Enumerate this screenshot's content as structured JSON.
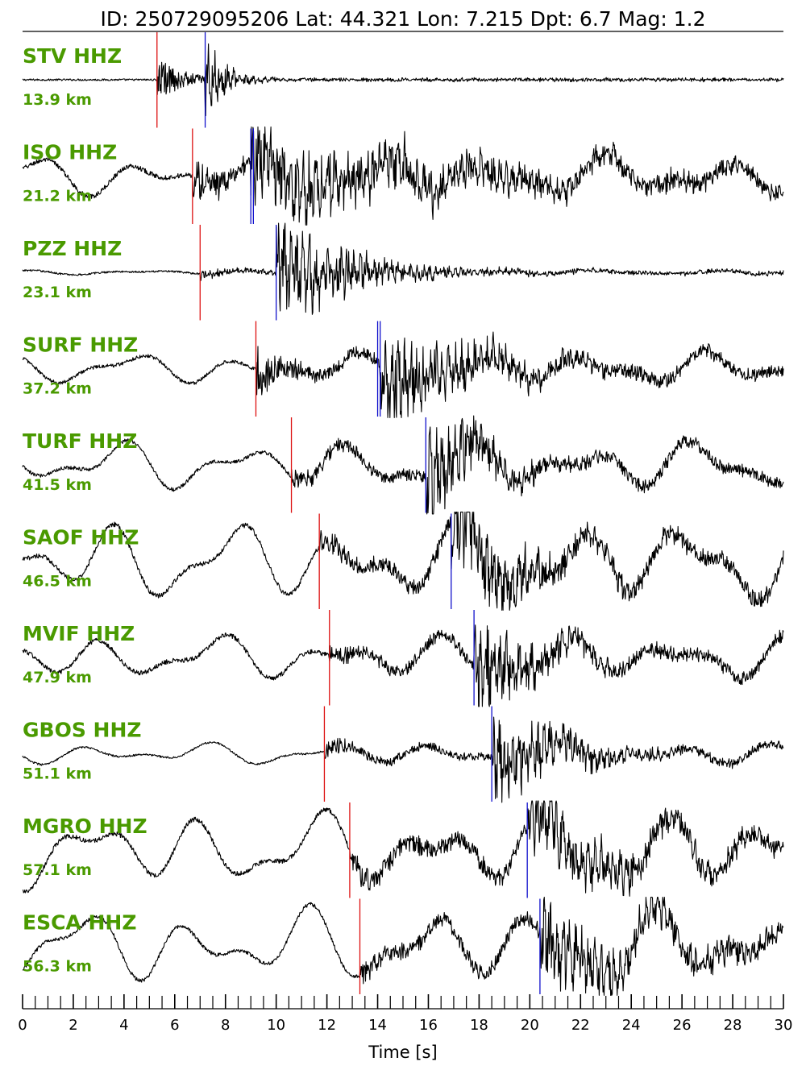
{
  "header": {
    "title": "ID: 250729095206 Lat:  44.321 Lon:   7.215 Dpt:     6.7 Mag:   1.2"
  },
  "colors": {
    "station_label": "#4a9a00",
    "p_pick": "#dd1111",
    "s_pick": "#1111cc",
    "trace": "#000000"
  },
  "chart_data": {
    "type": "line",
    "xlabel": "Time [s]",
    "xlim": [
      0,
      30
    ],
    "major_ticks": [
      0,
      2,
      4,
      6,
      8,
      10,
      12,
      14,
      16,
      18,
      20,
      22,
      24,
      26,
      28,
      30
    ],
    "minor_tick_step": 0.5,
    "stations": [
      {
        "name": "STV HHZ",
        "distance": "13.9 km",
        "p_time": 5.3,
        "s_time": 7.2,
        "p_extra": [],
        "s_extra": [],
        "pre_noise": 0.02,
        "p_amp": 0.45,
        "s_amp": 0.6,
        "decay": 1.2,
        "lowfreq": 0.0,
        "coda": 0.03
      },
      {
        "name": "ISO HHZ",
        "distance": "21.2 km",
        "p_time": 6.7,
        "s_time": 9.0,
        "p_extra": [],
        "s_extra": [
          9.1
        ],
        "pre_noise": 0.05,
        "p_amp": 0.55,
        "s_amp": 0.75,
        "decay": 0.12,
        "lowfreq": 0.45,
        "coda": 0.15
      },
      {
        "name": "PZZ HHZ",
        "distance": "23.1 km",
        "p_time": 7.0,
        "s_time": 10.0,
        "p_extra": [],
        "s_extra": [],
        "pre_noise": 0.02,
        "p_amp": 0.12,
        "s_amp": 0.95,
        "decay": 0.35,
        "lowfreq": 0.05,
        "coda": 0.04
      },
      {
        "name": "SURF HHZ",
        "distance": "37.2 km",
        "p_time": 9.2,
        "s_time": 14.1,
        "p_extra": [],
        "s_extra": [
          14.0
        ],
        "pre_noise": 0.04,
        "p_amp": 0.65,
        "s_amp": 0.85,
        "decay": 0.25,
        "lowfreq": 0.35,
        "coda": 0.12
      },
      {
        "name": "TURF HHZ",
        "distance": "41.5 km",
        "p_time": 10.6,
        "s_time": 15.9,
        "p_extra": [],
        "s_extra": [],
        "pre_noise": 0.04,
        "p_amp": 0.25,
        "s_amp": 0.9,
        "decay": 0.4,
        "lowfreq": 0.55,
        "coda": 0.12
      },
      {
        "name": "SAOF HHZ",
        "distance": "46.5 km",
        "p_time": 11.7,
        "s_time": 16.9,
        "p_extra": [],
        "s_extra": [],
        "pre_noise": 0.05,
        "p_amp": 0.2,
        "s_amp": 0.9,
        "decay": 0.3,
        "lowfreq": 0.9,
        "coda": 0.15
      },
      {
        "name": "MVIF HHZ",
        "distance": "47.9 km",
        "p_time": 12.1,
        "s_time": 17.8,
        "p_extra": [],
        "s_extra": [],
        "pre_noise": 0.05,
        "p_amp": 0.15,
        "s_amp": 0.9,
        "decay": 0.4,
        "lowfreq": 0.5,
        "coda": 0.12
      },
      {
        "name": "GBOS HHZ",
        "distance": "51.1 km",
        "p_time": 11.9,
        "s_time": 18.5,
        "p_extra": [],
        "s_extra": [],
        "pre_noise": 0.02,
        "p_amp": 0.2,
        "s_amp": 0.75,
        "decay": 0.35,
        "lowfreq": 0.25,
        "coda": 0.08
      },
      {
        "name": "MGRO HHZ",
        "distance": "57.1 km",
        "p_time": 12.9,
        "s_time": 19.9,
        "p_extra": [],
        "s_extra": [],
        "pre_noise": 0.05,
        "p_amp": 0.25,
        "s_amp": 0.6,
        "decay": 0.2,
        "lowfreq": 0.85,
        "coda": 0.18
      },
      {
        "name": "ESCA HHZ",
        "distance": "56.3 km",
        "p_time": 13.3,
        "s_time": 20.4,
        "p_extra": [],
        "s_extra": [],
        "pre_noise": 0.04,
        "p_amp": 0.25,
        "s_amp": 0.7,
        "decay": 0.2,
        "lowfreq": 0.85,
        "coda": 0.15
      }
    ]
  }
}
